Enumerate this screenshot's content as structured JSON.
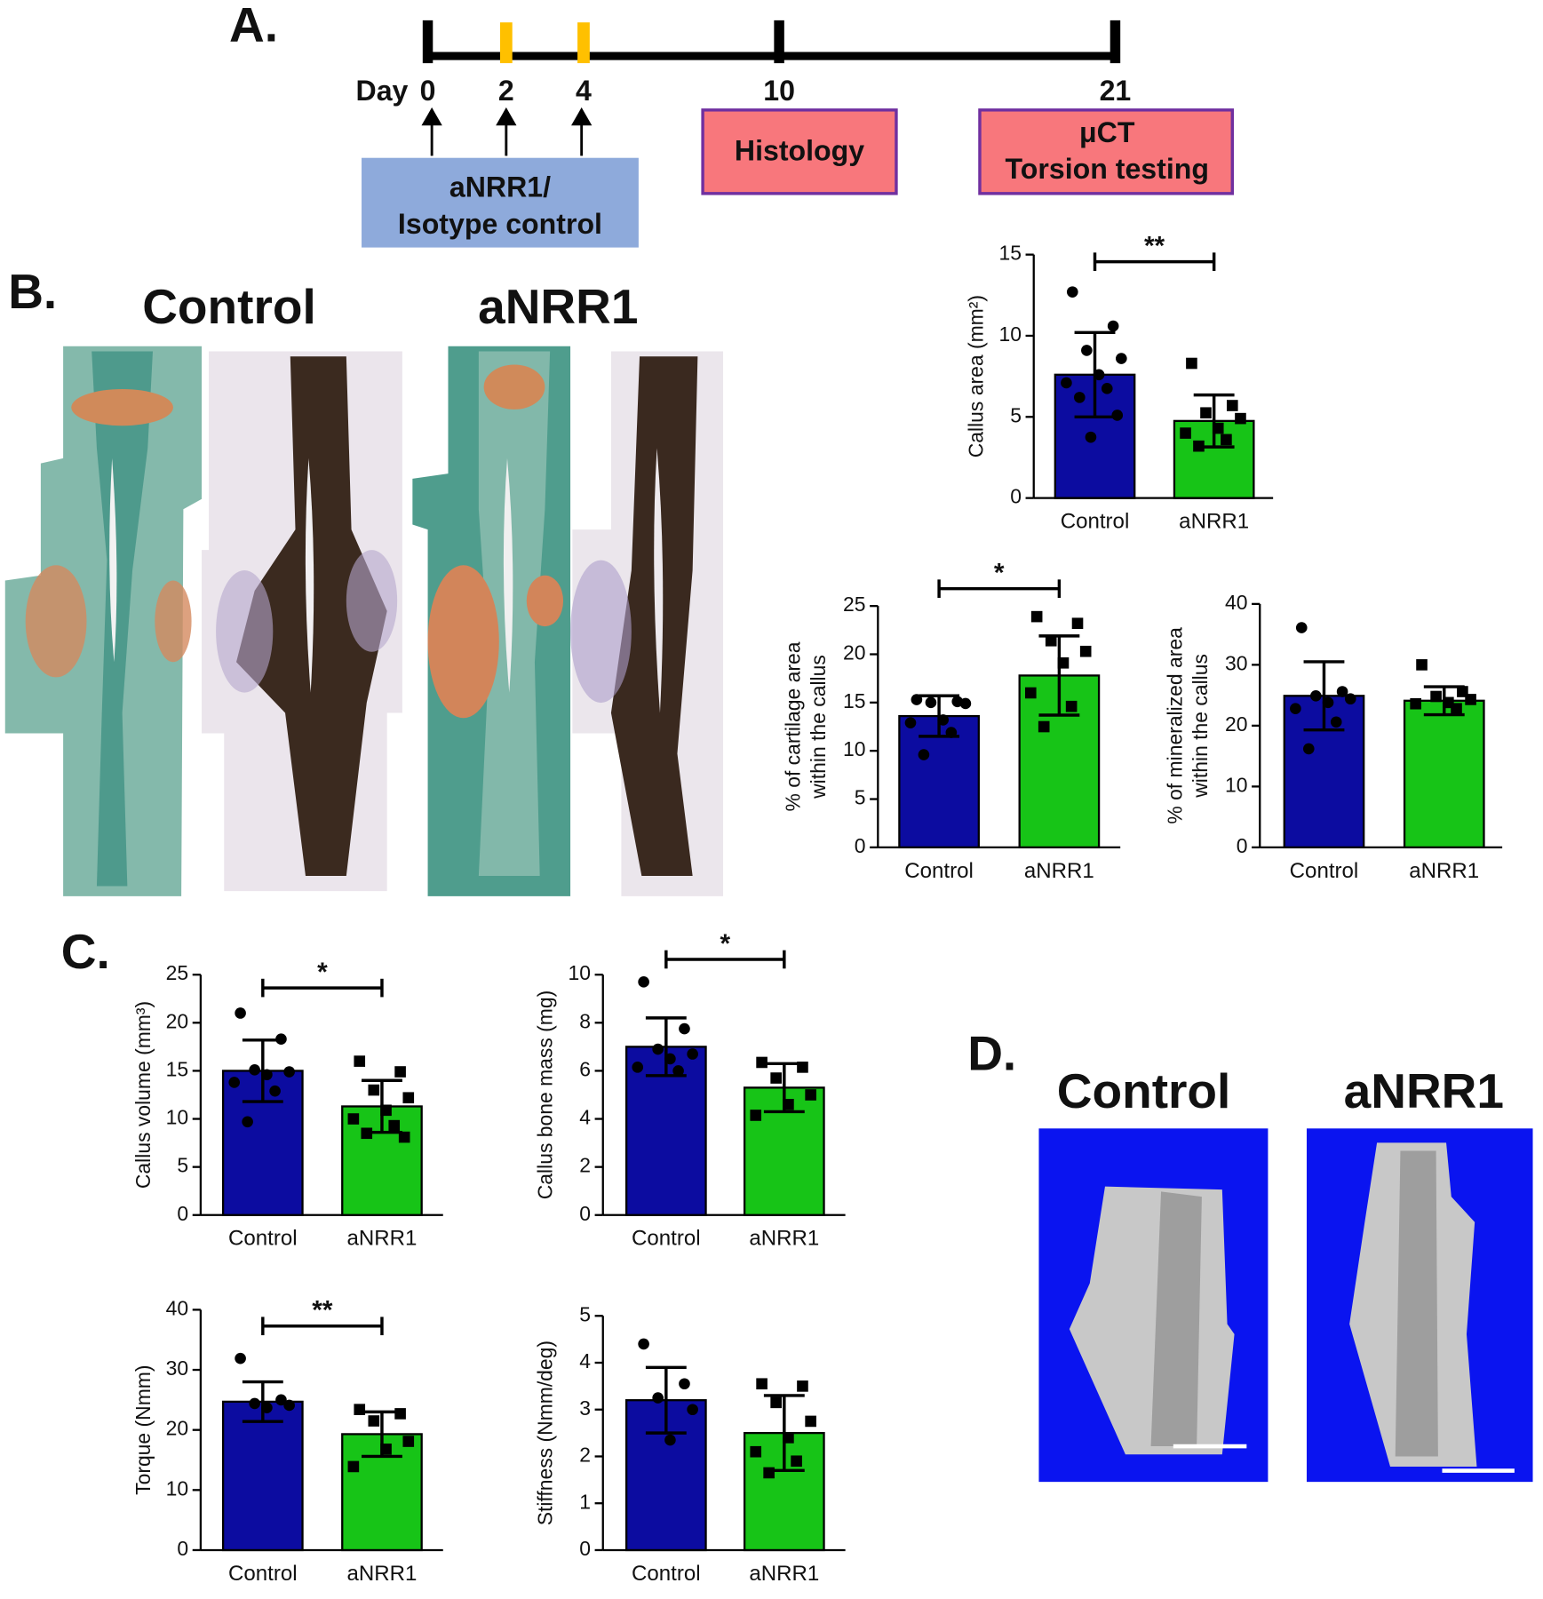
{
  "panel_labels": [
    "A.",
    "B.",
    "C.",
    "D."
  ],
  "timeline": {
    "prefix": "Day",
    "days": [
      0,
      2,
      4,
      10,
      21
    ],
    "dose_days": [
      2,
      4
    ],
    "boxes": [
      {
        "lines": [
          "aNRR1/",
          "Isotype control"
        ]
      },
      {
        "lines": [
          "Histology"
        ]
      },
      {
        "lines": [
          "μCT",
          "Torsion testing"
        ]
      }
    ]
  },
  "histology": {
    "groups": [
      "Control",
      "aNRR1"
    ]
  },
  "microct": {
    "groups": [
      "Control",
      "aNRR1"
    ]
  },
  "chart_data": [
    {
      "type": "bar",
      "ylabel": [
        "Callus area (mm²)"
      ],
      "categories": [
        "Control",
        "aNRR1"
      ],
      "values": [
        7.6,
        4.75
      ],
      "errors": [
        2.6,
        1.6
      ],
      "points": [
        [
          12.7,
          10.6,
          9.1,
          8.6,
          7.6,
          7.1,
          6.75,
          6.2,
          5.1,
          3.75
        ],
        [
          8.3,
          5.7,
          5.25,
          4.9,
          4.3,
          4.0,
          3.6,
          3.2
        ]
      ],
      "colors": [
        "#0c0ca0",
        "#17c417"
      ],
      "markers": [
        "circle",
        "square"
      ],
      "ylim": [
        0,
        15
      ],
      "yticks": [
        0,
        5,
        10,
        15
      ],
      "significance": "**"
    },
    {
      "type": "bar",
      "ylabel": [
        "% of cartilage area",
        "within the callus"
      ],
      "categories": [
        "Control",
        "aNRR1"
      ],
      "values": [
        13.6,
        17.8
      ],
      "errors": [
        2.1,
        4.1
      ],
      "points": [
        [
          15.3,
          15.1,
          15.0,
          14.9,
          13.2,
          12.9,
          11.9,
          9.6
        ],
        [
          23.9,
          23.2,
          21.4,
          20.3,
          19.1,
          16.0,
          14.6,
          12.5
        ]
      ],
      "colors": [
        "#0c0ca0",
        "#17c417"
      ],
      "markers": [
        "circle",
        "square"
      ],
      "ylim": [
        0,
        25
      ],
      "yticks": [
        0,
        5,
        10,
        15,
        20,
        25
      ],
      "significance": "*"
    },
    {
      "type": "bar",
      "ylabel": [
        "% of mineralized area",
        "within the callus"
      ],
      "categories": [
        "Control",
        "aNRR1"
      ],
      "values": [
        24.9,
        24.1
      ],
      "errors": [
        5.6,
        2.3
      ],
      "points": [
        [
          36.1,
          25.6,
          24.9,
          24.4,
          23.8,
          22.8,
          20.6,
          16.2
        ],
        [
          30.0,
          25.6,
          24.8,
          24.3,
          23.8,
          23.6,
          22.8
        ]
      ],
      "colors": [
        "#0c0ca0",
        "#17c417"
      ],
      "markers": [
        "circle",
        "square"
      ],
      "ylim": [
        0,
        40
      ],
      "yticks": [
        0,
        10,
        20,
        30,
        40
      ]
    },
    {
      "type": "bar",
      "ylabel": [
        "Callus volume (mm³)"
      ],
      "categories": [
        "Control",
        "aNRR1"
      ],
      "values": [
        15.0,
        11.3
      ],
      "errors": [
        3.2,
        2.7
      ],
      "points": [
        [
          21.0,
          18.3,
          15.1,
          14.9,
          14.6,
          13.8,
          12.9,
          9.7
        ],
        [
          16.0,
          14.9,
          13.0,
          12.2,
          10.9,
          10.0,
          9.3,
          8.5,
          8.1
        ]
      ],
      "colors": [
        "#0c0ca0",
        "#17c417"
      ],
      "markers": [
        "circle",
        "square"
      ],
      "ylim": [
        0,
        25
      ],
      "yticks": [
        0,
        5,
        10,
        15,
        20,
        25
      ],
      "significance": "*"
    },
    {
      "type": "bar",
      "ylabel": [
        "Callus bone mass (mg)"
      ],
      "categories": [
        "Control",
        "aNRR1"
      ],
      "values": [
        7.0,
        5.3
      ],
      "errors": [
        1.2,
        1.0
      ],
      "points": [
        [
          9.7,
          7.75,
          6.9,
          6.7,
          6.5,
          6.15,
          6.0
        ],
        [
          6.35,
          6.15,
          5.7,
          5.0,
          4.6,
          4.15
        ]
      ],
      "colors": [
        "#0c0ca0",
        "#17c417"
      ],
      "markers": [
        "circle",
        "square"
      ],
      "ylim": [
        0,
        10
      ],
      "yticks": [
        0,
        2,
        4,
        6,
        8,
        10
      ],
      "significance": "*"
    },
    {
      "type": "bar",
      "ylabel": [
        "Torque (Nmm)"
      ],
      "categories": [
        "Control",
        "aNRR1"
      ],
      "values": [
        24.7,
        19.3
      ],
      "errors": [
        3.3,
        3.7
      ],
      "points": [
        [
          31.9,
          25.0,
          24.4,
          24.1,
          23.7
        ],
        [
          23.4,
          22.7,
          21.5,
          18.1,
          16.8,
          13.9
        ]
      ],
      "colors": [
        "#0c0ca0",
        "#17c417"
      ],
      "markers": [
        "circle",
        "square"
      ],
      "ylim": [
        0,
        40
      ],
      "yticks": [
        0,
        10,
        20,
        30,
        40
      ],
      "significance": "**"
    },
    {
      "type": "bar",
      "ylabel": [
        "Stiffness (Nmm/deg)"
      ],
      "categories": [
        "Control",
        "aNRR1"
      ],
      "values": [
        3.2,
        2.5
      ],
      "errors": [
        0.7,
        0.8
      ],
      "points": [
        [
          4.4,
          3.55,
          3.25,
          3.0,
          2.35
        ],
        [
          3.55,
          3.5,
          3.15,
          2.75,
          2.4,
          2.1,
          1.9,
          1.65
        ]
      ],
      "colors": [
        "#0c0ca0",
        "#17c417"
      ],
      "markers": [
        "circle",
        "square"
      ],
      "ylim": [
        0,
        5
      ],
      "yticks": [
        0,
        1,
        2,
        3,
        4,
        5
      ]
    }
  ]
}
